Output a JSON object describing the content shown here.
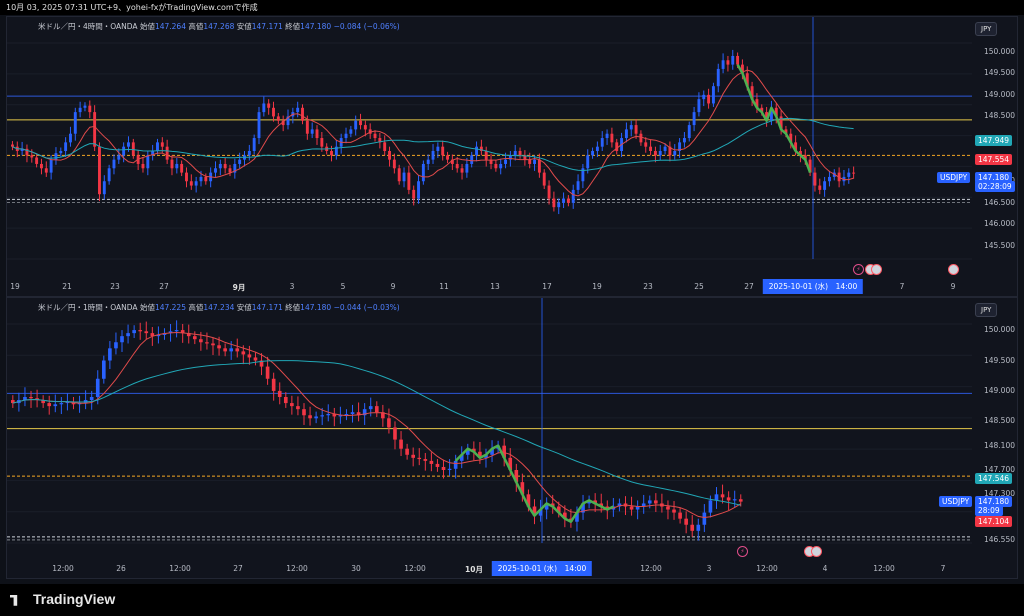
{
  "header": {
    "text": "10月 03, 2025 07:31 UTC+9、yohei-fxがTradingView.comで作成"
  },
  "footer": {
    "brand": "TradingView"
  },
  "colors": {
    "bull": "#2962ff",
    "bear": "#f23645",
    "ma_fast": "#e14b4b",
    "ma_slow": "#21a7b6",
    "swing": "#4caf50",
    "yellow_line": "#e6c84a",
    "blue_line": "#2c57d9",
    "orange_dash": "#f5a623"
  },
  "panels": [
    {
      "id": "4h",
      "legend": {
        "title": "米ドル／円・4時間・OANDA",
        "open_label": "始値",
        "open": "147.264",
        "high_label": "高値",
        "high": "147.268",
        "low_label": "安値",
        "low": "147.171",
        "close_label": "終値",
        "close": "147.180",
        "change": "−0.084 (−0.06%)"
      },
      "currency_button": "JPY",
      "y_ticks": [
        "150.000",
        "149.500",
        "149.000",
        "148.500",
        "147.000",
        "146.500",
        "146.000",
        "145.500"
      ],
      "x_ticks": [
        "19",
        "21",
        "23",
        "27",
        "9月",
        "3",
        "5",
        "9",
        "11",
        "13",
        "17",
        "19",
        "23",
        "25",
        "27",
        "7",
        "9"
      ],
      "price_tags": [
        {
          "text": "147.949",
          "kind": "ma_slow"
        },
        {
          "text": "147.554",
          "kind": "ma_fast"
        },
        {
          "text": "USDJPY",
          "kind": "symbol"
        },
        {
          "text": "147.180",
          "kind": "price"
        },
        {
          "text": "02:28:09",
          "kind": "countdown"
        }
      ],
      "crosshair_label": "2025-10-01 (水)　14:00",
      "chart_data": {
        "type": "candlestick",
        "ylim": [
          145.2,
          150.2
        ],
        "levels": {
          "blue": 148.97,
          "yellow": 148.42,
          "orange_dash": 147.6,
          "white_dash_low": 146.58
        },
        "candles": [
          147.8,
          147.7,
          147.75,
          147.6,
          147.55,
          147.4,
          147.3,
          147.2,
          147.5,
          147.65,
          147.7,
          147.9,
          148.1,
          148.6,
          148.7,
          148.75,
          148.6,
          147.8,
          146.7,
          147.0,
          147.3,
          147.5,
          147.6,
          147.8,
          147.9,
          147.6,
          147.4,
          147.3,
          147.6,
          147.7,
          147.9,
          147.8,
          147.5,
          147.3,
          147.4,
          147.2,
          147.0,
          146.9,
          147.0,
          147.1,
          147.0,
          147.2,
          147.3,
          147.4,
          147.3,
          147.2,
          147.4,
          147.5,
          147.6,
          147.7,
          148.0,
          148.6,
          148.8,
          148.7,
          148.5,
          148.4,
          148.3,
          148.5,
          148.6,
          148.7,
          148.4,
          148.1,
          148.2,
          148.0,
          147.8,
          147.7,
          147.6,
          147.8,
          148.0,
          148.1,
          148.2,
          148.4,
          148.3,
          148.2,
          148.1,
          148.0,
          147.9,
          147.7,
          147.5,
          147.3,
          147.0,
          147.2,
          146.8,
          146.6,
          147.0,
          147.4,
          147.5,
          147.7,
          147.8,
          147.6,
          147.5,
          147.4,
          147.3,
          147.2,
          147.4,
          147.6,
          147.8,
          147.7,
          147.5,
          147.4,
          147.3,
          147.4,
          147.5,
          147.6,
          147.7,
          147.6,
          147.5,
          147.4,
          147.5,
          147.2,
          146.9,
          146.6,
          146.4,
          146.5,
          146.6,
          146.5,
          146.8,
          147.0,
          147.3,
          147.6,
          147.7,
          147.8,
          148.0,
          148.1,
          147.9,
          147.7,
          148.0,
          148.2,
          148.3,
          148.1,
          147.9,
          147.8,
          147.7,
          147.6,
          147.7,
          147.8,
          147.6,
          147.7,
          147.9,
          148.0,
          148.3,
          148.6,
          148.9,
          149.0,
          148.8,
          149.2,
          149.6,
          149.8,
          149.7,
          149.9,
          149.7,
          149.5,
          149.2,
          148.9,
          148.7,
          148.6,
          148.4,
          148.7,
          148.5,
          148.2,
          148.1,
          147.9,
          147.7,
          147.6,
          147.5,
          147.2,
          146.9,
          146.8,
          147.0,
          147.1,
          147.2,
          147.0,
          147.1,
          147.2,
          147.18
        ]
      }
    },
    {
      "id": "1h",
      "legend": {
        "title": "米ドル／円・1時間・OANDA",
        "open_label": "始値",
        "open": "147.225",
        "high_label": "高値",
        "high": "147.234",
        "low_label": "安値",
        "low": "147.171",
        "close_label": "終値",
        "close": "147.180",
        "change": "−0.044 (−0.03%)"
      },
      "currency_button": "JPY",
      "y_ticks": [
        "150.000",
        "149.500",
        "149.000",
        "148.500",
        "148.100",
        "147.700",
        "147.300",
        "146.550"
      ],
      "x_ticks": [
        "12:00",
        "26",
        "12:00",
        "27",
        "12:00",
        "30",
        "12:00",
        "10月",
        "12:00",
        "3",
        "12:00",
        "4",
        "12:00",
        "7"
      ],
      "price_tags": [
        {
          "text": "147.546",
          "kind": "ma_slow"
        },
        {
          "text": "USDJPY",
          "kind": "symbol"
        },
        {
          "text": "147.180",
          "kind": "price"
        },
        {
          "text": "28:09",
          "kind": "countdown"
        },
        {
          "text": "147.104",
          "kind": "ma_fast"
        }
      ],
      "crosshair_label": "2025-10-01 (水)　14:00",
      "chart_data": {
        "type": "candlestick",
        "ylim": [
          146.5,
          150.1
        ],
        "levels": {
          "blue": 148.96,
          "yellow": 148.38,
          "orange_dash": 147.6,
          "white_dash_low": 146.6
        },
        "candles": [
          148.8,
          148.85,
          148.9,
          148.88,
          148.85,
          148.8,
          148.75,
          148.78,
          148.8,
          148.82,
          148.78,
          148.8,
          148.85,
          148.9,
          149.2,
          149.5,
          149.7,
          149.8,
          149.9,
          149.95,
          150.0,
          149.98,
          149.95,
          149.9,
          149.92,
          149.95,
          149.98,
          150.0,
          149.95,
          149.9,
          149.85,
          149.8,
          149.78,
          149.75,
          149.7,
          149.65,
          149.7,
          149.65,
          149.6,
          149.55,
          149.5,
          149.4,
          149.2,
          149.0,
          148.9,
          148.8,
          148.75,
          148.7,
          148.6,
          148.55,
          148.58,
          148.6,
          148.62,
          148.58,
          148.6,
          148.62,
          148.65,
          148.6,
          148.7,
          148.75,
          148.65,
          148.55,
          148.4,
          148.2,
          148.05,
          147.95,
          147.9,
          147.88,
          147.85,
          147.8,
          147.75,
          147.7,
          147.72,
          147.85,
          147.95,
          148.05,
          148.0,
          147.9,
          147.95,
          148.05,
          148.1,
          147.9,
          147.7,
          147.5,
          147.3,
          147.1,
          146.95,
          147.05,
          147.15,
          147.1,
          147.0,
          146.9,
          146.85,
          147.0,
          147.15,
          147.2,
          147.15,
          147.1,
          147.05,
          147.1,
          147.15,
          147.1,
          147.05,
          147.1,
          147.15,
          147.2,
          147.15,
          147.1,
          147.05,
          147.0,
          146.9,
          146.8,
          146.7,
          146.8,
          147.0,
          147.2,
          147.3,
          147.25,
          147.2,
          147.22,
          147.18
        ]
      }
    }
  ]
}
